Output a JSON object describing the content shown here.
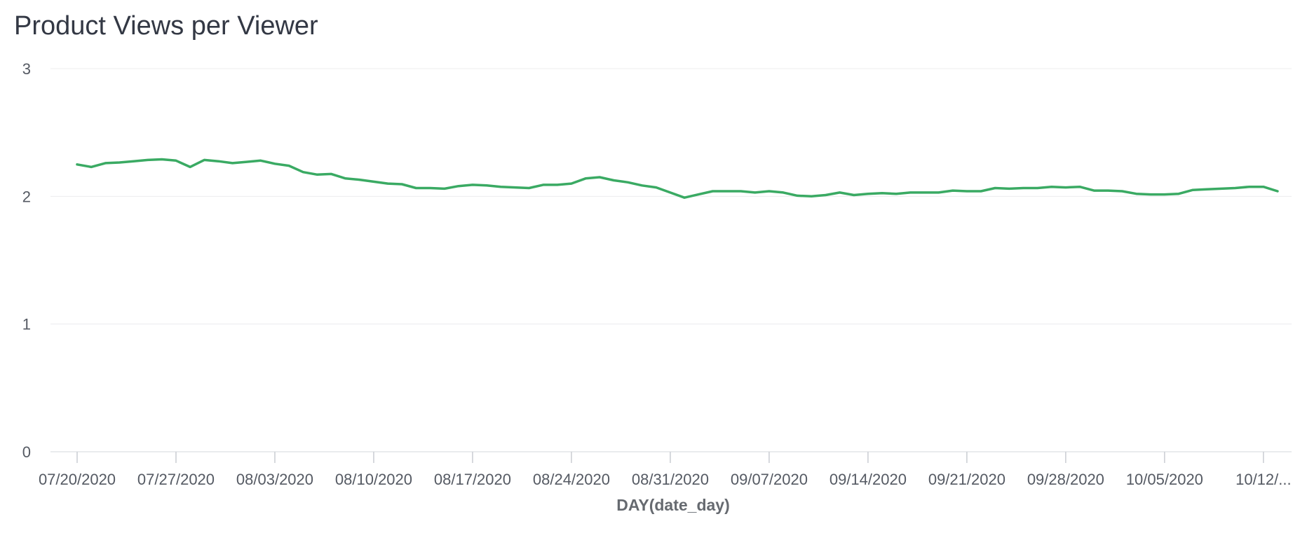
{
  "chart_data": {
    "type": "line",
    "title": "Product Views per Viewer",
    "xlabel": "DAY(date_day)",
    "ylabel": "",
    "ylim": [
      0,
      3
    ],
    "yticks": [
      "0",
      "1",
      "2",
      "3"
    ],
    "grid": true,
    "line_color": "#3aaa63",
    "x_tick_labels": [
      "07/20/2020",
      "07/27/2020",
      "08/03/2020",
      "08/10/2020",
      "08/17/2020",
      "08/24/2020",
      "08/31/2020",
      "09/07/2020",
      "09/14/2020",
      "09/21/2020",
      "09/28/2020",
      "10/05/2020",
      "10/12/..."
    ],
    "x_start": "07/20/2020",
    "x_end": "10/13/2020",
    "series": [
      {
        "values": [
          2.25,
          2.23,
          2.26,
          2.265,
          2.275,
          2.285,
          2.29,
          2.28,
          2.23,
          2.285,
          2.275,
          2.26,
          2.27,
          2.28,
          2.255,
          2.24,
          2.19,
          2.17,
          2.175,
          2.14,
          2.13,
          2.115,
          2.1,
          2.095,
          2.065,
          2.065,
          2.06,
          2.08,
          2.09,
          2.085,
          2.075,
          2.07,
          2.065,
          2.09,
          2.09,
          2.1,
          2.14,
          2.15,
          2.125,
          2.11,
          2.085,
          2.07,
          2.03,
          1.99,
          2.015,
          2.04,
          2.04,
          2.04,
          2.03,
          2.04,
          2.03,
          2.005,
          2.0,
          2.01,
          2.03,
          2.01,
          2.02,
          2.025,
          2.02,
          2.03,
          2.03,
          2.03,
          2.045,
          2.04,
          2.04,
          2.065,
          2.06,
          2.065,
          2.065,
          2.075,
          2.07,
          2.075,
          2.045,
          2.045,
          2.04,
          2.02,
          2.015,
          2.015,
          2.02,
          2.05,
          2.055,
          2.06,
          2.065,
          2.075,
          2.075,
          2.04
        ]
      }
    ]
  }
}
